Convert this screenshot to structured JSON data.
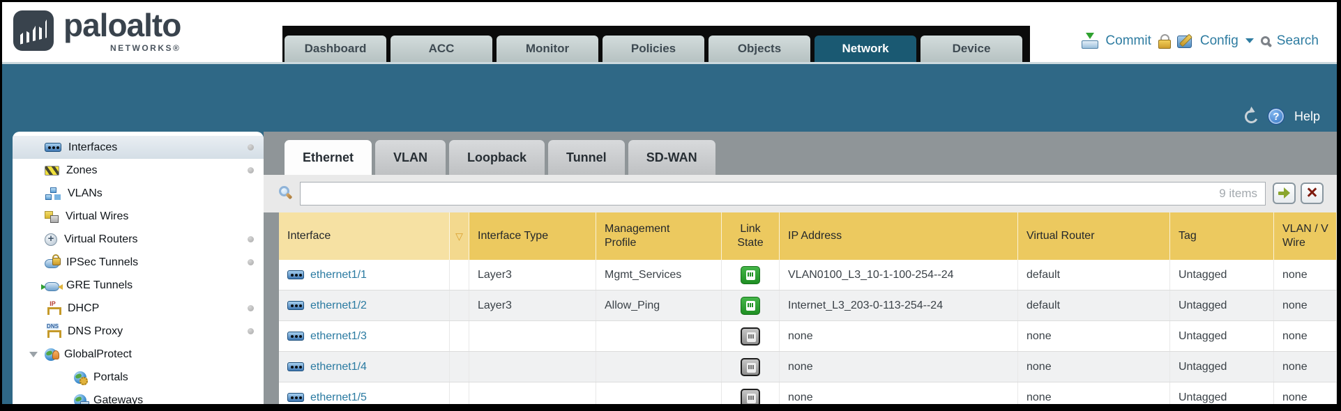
{
  "brand": {
    "name": "paloalto",
    "sub": "NETWORKS®"
  },
  "header": {
    "tabs": [
      {
        "label": "Dashboard",
        "active": false
      },
      {
        "label": "ACC",
        "active": false
      },
      {
        "label": "Monitor",
        "active": false
      },
      {
        "label": "Policies",
        "active": false
      },
      {
        "label": "Objects",
        "active": false
      },
      {
        "label": "Network",
        "active": true
      },
      {
        "label": "Device",
        "active": false
      }
    ],
    "commit_label": "Commit",
    "config_label": "Config",
    "search_label": "Search"
  },
  "subheader": {
    "help_label": "Help"
  },
  "sidebar": {
    "items": [
      {
        "label": "Interfaces",
        "icon": "interfaces-icon",
        "selected": true,
        "dot": true,
        "child": false,
        "expanded": false
      },
      {
        "label": "Zones",
        "icon": "zones-icon",
        "selected": false,
        "dot": true,
        "child": false,
        "expanded": false
      },
      {
        "label": "VLANs",
        "icon": "vlans-icon",
        "selected": false,
        "dot": false,
        "child": false,
        "expanded": false
      },
      {
        "label": "Virtual Wires",
        "icon": "virtual-wires-icon",
        "selected": false,
        "dot": false,
        "child": false,
        "expanded": false
      },
      {
        "label": "Virtual Routers",
        "icon": "virtual-routers-icon",
        "selected": false,
        "dot": true,
        "child": false,
        "expanded": false
      },
      {
        "label": "IPSec Tunnels",
        "icon": "ipsec-tunnels-icon",
        "selected": false,
        "dot": true,
        "child": false,
        "expanded": false
      },
      {
        "label": "GRE Tunnels",
        "icon": "gre-tunnels-icon",
        "selected": false,
        "dot": false,
        "child": false,
        "expanded": false
      },
      {
        "label": "DHCP",
        "icon": "dhcp-icon",
        "selected": false,
        "dot": true,
        "child": false,
        "expanded": false
      },
      {
        "label": "DNS Proxy",
        "icon": "dns-proxy-icon",
        "selected": false,
        "dot": true,
        "child": false,
        "expanded": false
      },
      {
        "label": "GlobalProtect",
        "icon": "globalprotect-icon",
        "selected": false,
        "dot": false,
        "child": false,
        "expanded": true
      },
      {
        "label": "Portals",
        "icon": "portals-icon",
        "selected": false,
        "dot": false,
        "child": true,
        "expanded": false
      },
      {
        "label": "Gateways",
        "icon": "gateways-icon",
        "selected": false,
        "dot": false,
        "child": true,
        "expanded": false
      }
    ]
  },
  "content": {
    "tabs": [
      {
        "label": "Ethernet",
        "active": true
      },
      {
        "label": "VLAN",
        "active": false
      },
      {
        "label": "Loopback",
        "active": false
      },
      {
        "label": "Tunnel",
        "active": false
      },
      {
        "label": "SD-WAN",
        "active": false
      }
    ],
    "toolbar": {
      "search_value": "",
      "items_count": "9 items"
    },
    "table": {
      "columns": [
        {
          "label": "Interface"
        },
        {
          "label": "Interface Type"
        },
        {
          "label": "Management",
          "label2": "Profile"
        },
        {
          "label": "Link",
          "label2": "State"
        },
        {
          "label": "IP Address"
        },
        {
          "label": "Virtual Router"
        },
        {
          "label": "Tag"
        },
        {
          "label": "VLAN / V",
          "label2": "Wire"
        }
      ],
      "rows": [
        {
          "interface": "ethernet1/1",
          "type": "Layer3",
          "mgmt_profile": "Mgmt_Services",
          "link_state": "up",
          "ip": "VLAN0100_L3_10-1-100-254--24",
          "vr": "default",
          "tag": "Untagged",
          "vlan": "none"
        },
        {
          "interface": "ethernet1/2",
          "type": "Layer3",
          "mgmt_profile": "Allow_Ping",
          "link_state": "up",
          "ip": "Internet_L3_203-0-113-254--24",
          "vr": "default",
          "tag": "Untagged",
          "vlan": "none"
        },
        {
          "interface": "ethernet1/3",
          "type": "",
          "mgmt_profile": "",
          "link_state": "down",
          "ip": "none",
          "vr": "none",
          "tag": "Untagged",
          "vlan": "none"
        },
        {
          "interface": "ethernet1/4",
          "type": "",
          "mgmt_profile": "",
          "link_state": "down",
          "ip": "none",
          "vr": "none",
          "tag": "Untagged",
          "vlan": "none"
        },
        {
          "interface": "ethernet1/5",
          "type": "",
          "mgmt_profile": "",
          "link_state": "down",
          "ip": "none",
          "vr": "none",
          "tag": "Untagged",
          "vlan": "none"
        }
      ]
    }
  },
  "colors": {
    "teal_bar": "#2f6886",
    "active_tab": "#1a5972",
    "header_gold": "#ecc95f",
    "header_gold_light": "#f6e1a3",
    "link_blue": "#2a7aa1",
    "link_up_green": "#2f9e33",
    "link_down_gray": "#9a9a9a"
  }
}
